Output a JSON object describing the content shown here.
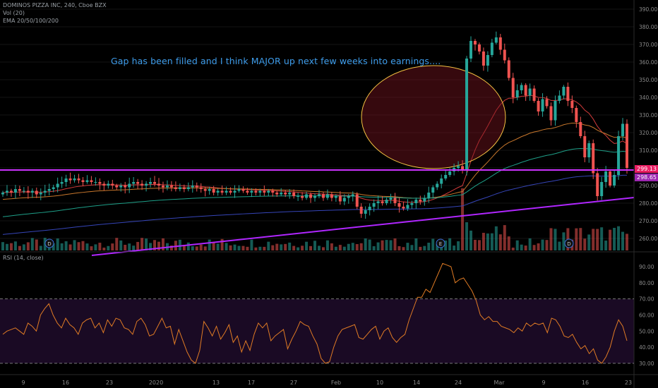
{
  "header": {
    "symbol": "DOMINOS PIZZA INC, 240, Cboe BZX",
    "volume": "Vol (20)",
    "ema": "EMA 20/50/100/200",
    "rsi": "RSI (14, close)"
  },
  "annotation": "Gap has been filled and I think MAJOR up next few weeks into earnings....",
  "price_tags": [
    {
      "label": "299.13",
      "color": "#e91e63"
    },
    {
      "label": "298.65",
      "color": "#9c27b0"
    }
  ],
  "colors": {
    "up": "#26a69a",
    "down": "#ef5350",
    "support": "#cc33ff",
    "ellipse": "#f5c242"
  },
  "chart_data": [
    {
      "type": "candlestick",
      "title": "",
      "y_axis_labels": [
        "390.00",
        "380.00",
        "370.00",
        "360.00",
        "350.00",
        "340.00",
        "330.00",
        "320.00",
        "310.00",
        "300.00",
        "290.00",
        "280.00",
        "270.00",
        "260.00"
      ],
      "x_axis_labels": [
        "9",
        "16",
        "23",
        "2020",
        "13",
        "17",
        "27",
        "Feb",
        "10",
        "14",
        "24",
        "Mar",
        "9",
        "16",
        "23"
      ],
      "ylim": [
        257,
        392
      ],
      "closes": [
        286,
        287,
        286,
        288,
        287,
        287,
        286,
        287,
        285,
        286,
        287,
        288,
        289,
        291,
        292,
        294,
        293,
        294,
        293,
        292,
        293,
        292,
        292,
        291,
        290,
        291,
        290,
        289,
        290,
        289,
        291,
        292,
        291,
        290,
        291,
        292,
        291,
        290,
        289,
        290,
        289,
        288,
        289,
        288,
        289,
        290,
        289,
        288,
        287,
        288,
        286,
        287,
        286,
        287,
        286,
        287,
        288,
        287,
        286,
        287,
        286,
        287,
        286,
        287,
        286,
        285,
        286,
        285,
        286,
        284,
        284,
        283,
        285,
        283,
        284,
        285,
        283,
        285,
        283,
        284,
        281,
        283,
        284,
        285,
        278,
        274,
        276,
        278,
        280,
        281,
        280,
        282,
        283,
        280,
        278,
        277,
        279,
        280,
        282,
        281,
        283,
        286,
        289,
        291,
        294,
        296,
        298,
        300,
        301,
        299,
        362,
        372,
        370,
        366,
        358,
        364,
        371,
        374,
        367,
        361,
        351,
        340,
        344,
        347,
        341,
        345,
        338,
        332,
        339,
        335,
        327,
        338,
        341,
        346,
        338,
        334,
        326,
        318,
        306,
        314,
        297,
        284,
        292,
        298,
        290,
        296,
        318,
        325,
        300
      ],
      "volume_closes_up_down": "per-bar, color follows candle direction"
    },
    {
      "type": "line",
      "title": "",
      "series_name": "RSI",
      "ylim": [
        25,
        95
      ],
      "y_axis_labels": [
        "90.00",
        "80.00",
        "70.00",
        "60.00",
        "50.00",
        "40.00",
        "30.00"
      ],
      "reference_lines": [
        70,
        30
      ],
      "values": [
        48,
        50,
        51,
        52,
        50,
        48,
        55,
        53,
        50,
        60,
        64,
        67,
        60,
        55,
        52,
        58,
        54,
        52,
        48,
        55,
        57,
        58,
        52,
        55,
        49,
        57,
        53,
        58,
        57,
        52,
        51,
        48,
        56,
        58,
        54,
        47,
        48,
        53,
        58,
        52,
        53,
        42,
        51,
        44,
        37,
        32,
        30,
        38,
        56,
        52,
        47,
        53,
        45,
        49,
        54,
        43,
        47,
        37,
        44,
        38,
        48,
        55,
        52,
        55,
        44,
        47,
        49,
        51,
        39,
        45,
        50,
        56,
        54,
        53,
        47,
        42,
        33,
        30,
        31,
        40,
        47,
        51,
        52,
        53,
        54,
        46,
        45,
        48,
        51,
        53,
        45,
        50,
        52,
        46,
        43,
        46,
        48,
        57,
        64,
        71,
        71,
        76,
        74,
        80,
        86,
        92,
        91,
        90,
        80,
        82,
        83,
        79,
        75,
        69,
        60,
        57,
        59,
        56,
        56,
        53,
        52,
        51,
        49,
        52,
        50,
        55,
        53,
        55,
        54,
        55,
        49,
        58,
        57,
        53,
        47,
        46,
        48,
        43,
        39,
        41,
        36,
        39,
        32,
        30,
        34,
        40,
        50,
        57,
        53,
        44
      ]
    }
  ]
}
